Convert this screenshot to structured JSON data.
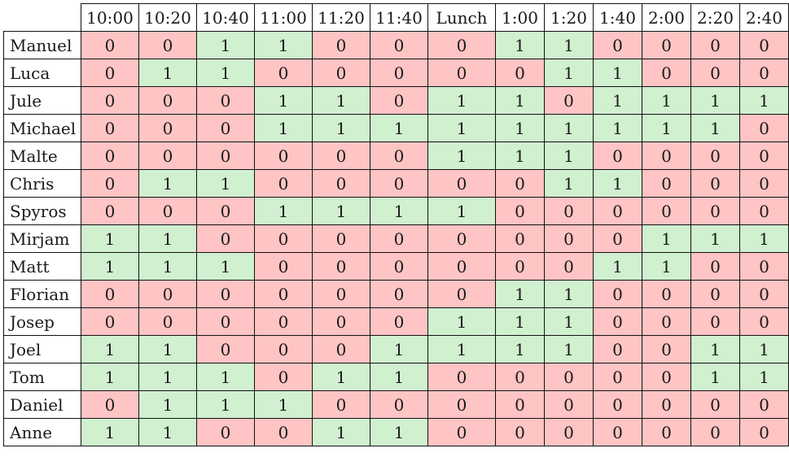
{
  "table": {
    "corner": "",
    "columns": [
      "10:00",
      "10:20",
      "10:40",
      "11:00",
      "11:20",
      "11:40",
      "Lunch",
      "1:00",
      "1:20",
      "1:40",
      "2:00",
      "2:20",
      "2:40"
    ],
    "rows": [
      {
        "name": "Manuel",
        "values": [
          "0",
          "0",
          "1",
          "1",
          "0",
          "0",
          "0",
          "1",
          "1",
          "0",
          "0",
          "0",
          "0"
        ]
      },
      {
        "name": "Luca",
        "values": [
          "0",
          "1",
          "1",
          "0",
          "0",
          "0",
          "0",
          "0",
          "1",
          "1",
          "0",
          "0",
          "0"
        ]
      },
      {
        "name": "Jule",
        "values": [
          "0",
          "0",
          "0",
          "1",
          "1",
          "0",
          "1",
          "1",
          "0",
          "1",
          "1",
          "1",
          "1"
        ]
      },
      {
        "name": "Michael",
        "values": [
          "0",
          "0",
          "0",
          "1",
          "1",
          "1",
          "1",
          "1",
          "1",
          "1",
          "1",
          "1",
          "0"
        ]
      },
      {
        "name": "Malte",
        "values": [
          "0",
          "0",
          "0",
          "0",
          "0",
          "0",
          "1",
          "1",
          "1",
          "0",
          "0",
          "0",
          "0"
        ]
      },
      {
        "name": "Chris",
        "values": [
          "0",
          "1",
          "1",
          "0",
          "0",
          "0",
          "0",
          "0",
          "1",
          "1",
          "0",
          "0",
          "0"
        ]
      },
      {
        "name": "Spyros",
        "values": [
          "0",
          "0",
          "0",
          "1",
          "1",
          "1",
          "1",
          "0",
          "0",
          "0",
          "0",
          "0",
          "0"
        ]
      },
      {
        "name": "Mirjam",
        "values": [
          "1",
          "1",
          "0",
          "0",
          "0",
          "0",
          "0",
          "0",
          "0",
          "0",
          "1",
          "1",
          "1"
        ]
      },
      {
        "name": "Matt",
        "values": [
          "1",
          "1",
          "1",
          "0",
          "0",
          "0",
          "0",
          "0",
          "0",
          "1",
          "1",
          "0",
          "0"
        ]
      },
      {
        "name": "Florian",
        "values": [
          "0",
          "0",
          "0",
          "0",
          "0",
          "0",
          "0",
          "1",
          "1",
          "0",
          "0",
          "0",
          "0"
        ]
      },
      {
        "name": "Josep",
        "values": [
          "0",
          "0",
          "0",
          "0",
          "0",
          "0",
          "1",
          "1",
          "1",
          "0",
          "0",
          "0",
          "0"
        ]
      },
      {
        "name": "Joel",
        "values": [
          "1",
          "1",
          "0",
          "0",
          "0",
          "1",
          "1",
          "1",
          "1",
          "0",
          "0",
          "1",
          "1"
        ]
      },
      {
        "name": "Tom",
        "values": [
          "1",
          "1",
          "1",
          "0",
          "1",
          "1",
          "0",
          "0",
          "0",
          "0",
          "0",
          "1",
          "1"
        ]
      },
      {
        "name": "Daniel",
        "values": [
          "0",
          "1",
          "1",
          "1",
          "0",
          "0",
          "0",
          "0",
          "0",
          "0",
          "0",
          "0",
          "0"
        ]
      },
      {
        "name": "Anne",
        "values": [
          "1",
          "1",
          "0",
          "0",
          "1",
          "1",
          "0",
          "0",
          "0",
          "0",
          "0",
          "0",
          "0"
        ]
      }
    ]
  },
  "colors": {
    "available": "#d0f0d0",
    "unavailable": "#ffc4c4",
    "border": "#111111"
  }
}
